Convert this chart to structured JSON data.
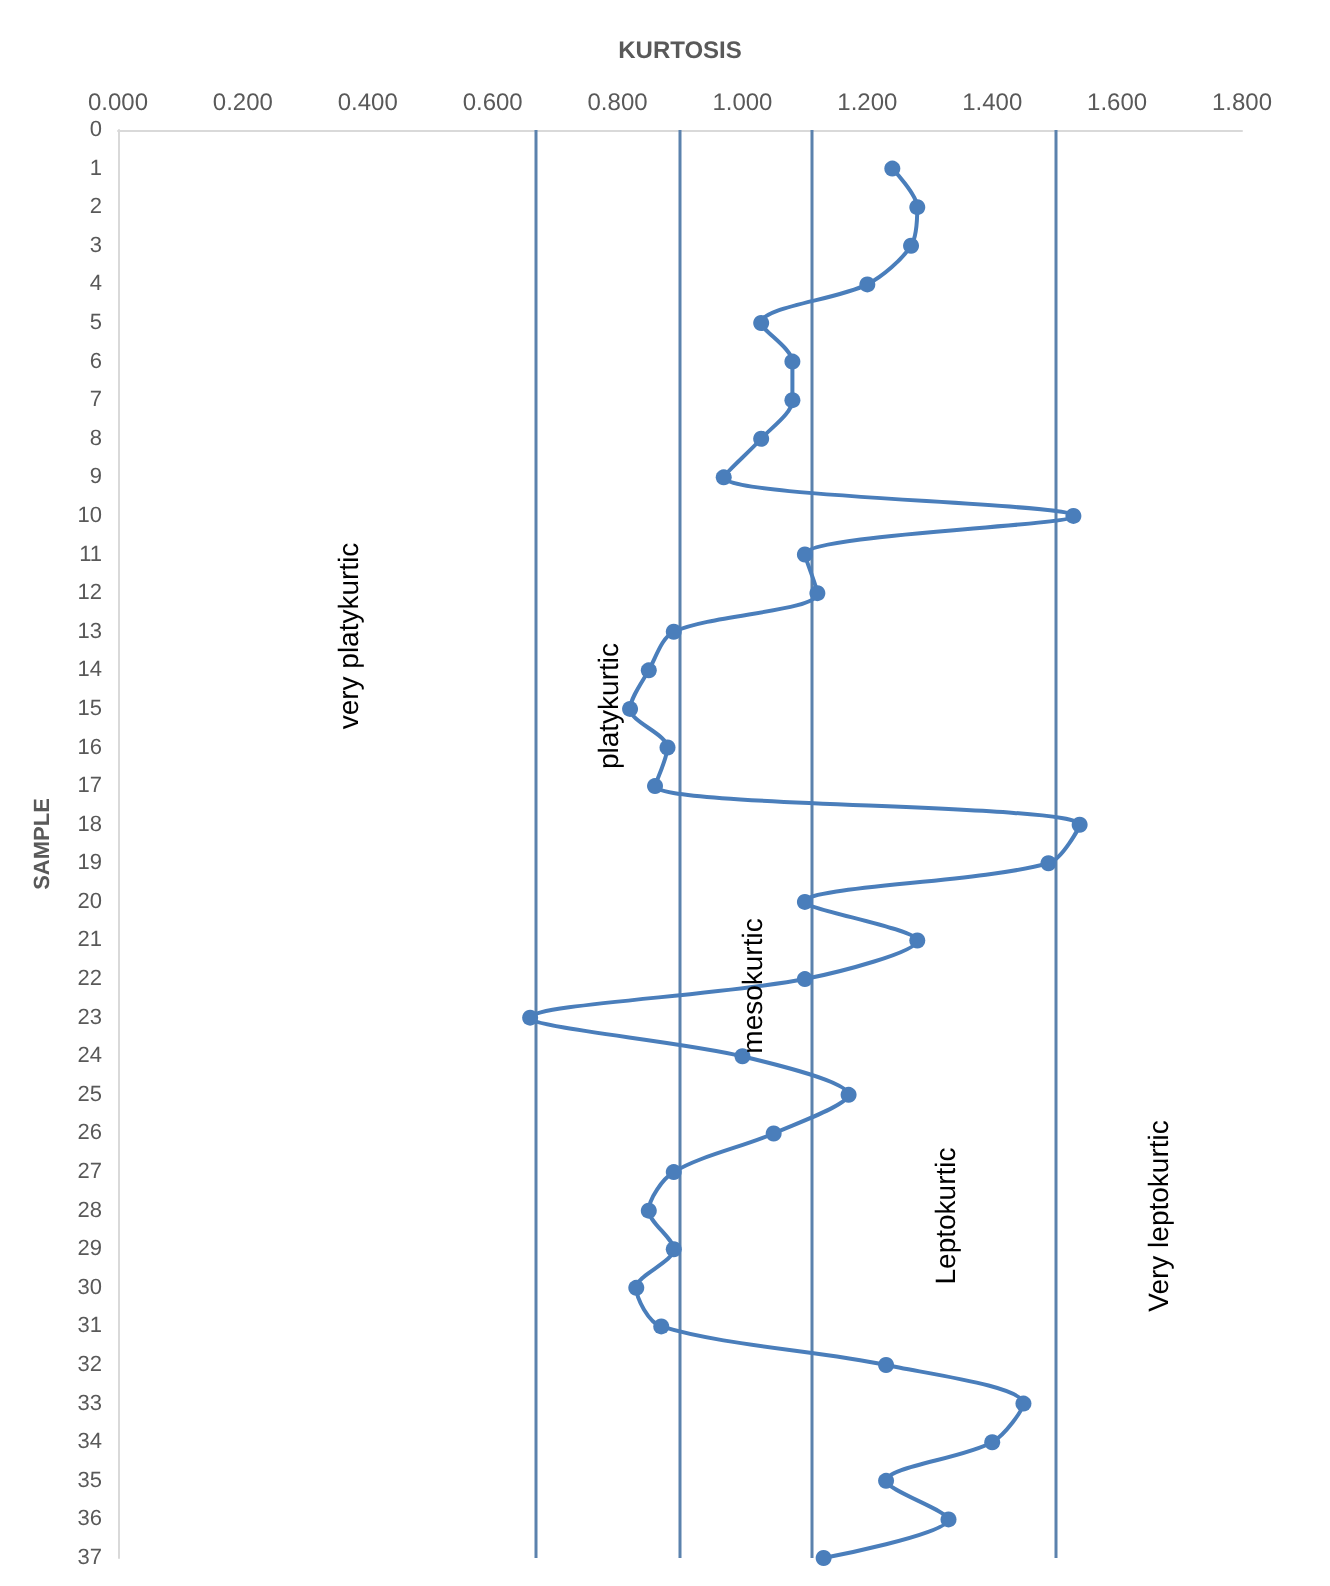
{
  "chart_data": {
    "type": "line",
    "xlabel": "KURTOSIS",
    "ylabel": "SAMPLE",
    "xlim": [
      0,
      1.8
    ],
    "xticks": [
      {
        "value": 0,
        "label": "0.000"
      },
      {
        "value": 0.2,
        "label": "0.200"
      },
      {
        "value": 0.4,
        "label": "0.400"
      },
      {
        "value": 0.6,
        "label": "0.600"
      },
      {
        "value": 0.8,
        "label": "0.800"
      },
      {
        "value": 1.0,
        "label": "1.000"
      },
      {
        "value": 1.2,
        "label": "1.200"
      },
      {
        "value": 1.4,
        "label": "1.400"
      },
      {
        "value": 1.6,
        "label": "1.600"
      },
      {
        "value": 1.8,
        "label": "1.800"
      }
    ],
    "ylim": [
      37,
      0
    ],
    "yticks": [
      0,
      1,
      2,
      3,
      4,
      5,
      6,
      7,
      8,
      9,
      10,
      11,
      12,
      13,
      14,
      15,
      16,
      17,
      18,
      19,
      20,
      21,
      22,
      23,
      24,
      25,
      26,
      27,
      28,
      29,
      30,
      31,
      32,
      33,
      34,
      35,
      36,
      37
    ],
    "series": [
      {
        "color": "#4a7ebb",
        "x": [
          1.24,
          1.28,
          1.27,
          1.2,
          1.03,
          1.08,
          1.08,
          1.03,
          0.97,
          1.53,
          1.1,
          1.12,
          0.89,
          0.85,
          0.82,
          0.88,
          0.86,
          1.54,
          1.49,
          1.1,
          1.28,
          1.1,
          0.66,
          1.0,
          1.17,
          1.05,
          0.89,
          0.85,
          0.89,
          0.83,
          0.87,
          1.23,
          1.45,
          1.4,
          1.23,
          1.33,
          1.13
        ],
        "values": [
          1,
          2,
          3,
          4,
          5,
          6,
          7,
          8,
          9,
          10,
          11,
          12,
          13,
          14,
          15,
          16,
          17,
          18,
          19,
          20,
          21,
          22,
          23,
          24,
          25,
          26,
          27,
          28,
          29,
          30,
          31,
          32,
          33,
          34,
          35,
          36,
          37
        ]
      }
    ],
    "marker": "circle",
    "grid": false,
    "ref_lines": [
      {
        "axis": "x",
        "value": 0.67,
        "label": null,
        "color": "#5b82ad"
      },
      {
        "axis": "x",
        "value": 0.9,
        "label": null,
        "color": "#5b82ad"
      },
      {
        "axis": "x",
        "value": 1.11,
        "label": null,
        "color": "#5b82ad"
      },
      {
        "axis": "x",
        "value": 1.5,
        "label": null,
        "color": "#5b82ad"
      }
    ],
    "annotations": [
      "very platykurtic",
      "platykurtic",
      "mesokurtic",
      "Leptokurtic",
      "Very leptokurtic"
    ]
  }
}
